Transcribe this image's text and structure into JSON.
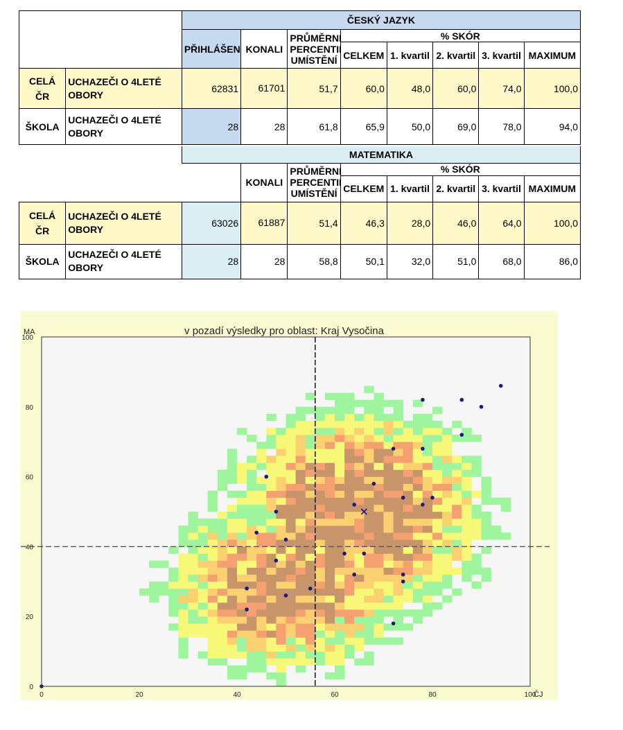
{
  "cesky": {
    "title": "ČESKÝ JAZYK",
    "headers": {
      "prihlaseni": "PŘIHLÁŠENI",
      "konali": "KONALI",
      "prumerne": "PRŮMĚRNÉ PERCENTIL. UMÍSTĚNÍ",
      "skor": "% SKÓR",
      "celkem": "CELKEM",
      "k1": "1. kvartil",
      "k2": "2. kvartil",
      "k3": "3. kvartil",
      "max": "MAXIMUM"
    },
    "rows": [
      {
        "label": "CELÁ ČR",
        "group": "UCHAZEČI O 4LETÉ OBORY",
        "prihlaseni": "62831",
        "konali": "61701",
        "prumerne": "51,7",
        "celkem": "60,0",
        "k1": "48,0",
        "k2": "60,0",
        "k3": "74,0",
        "max": "100,0"
      },
      {
        "label": "ŠKOLA",
        "group": "UCHAZEČI O 4LETÉ OBORY",
        "prihlaseni": "28",
        "konali": "28",
        "prumerne": "61,8",
        "celkem": "65,9",
        "k1": "50,0",
        "k2": "69,0",
        "k3": "78,0",
        "max": "94,0"
      }
    ]
  },
  "matematika": {
    "title": "MATEMATIKA",
    "headers": {
      "konali": "KONALI",
      "prumerne": "PRŮMĚRNÉ PERCENTIL. UMÍSTĚNÍ",
      "skor": "% SKÓR",
      "celkem": "CELKEM",
      "k1": "1. kvartil",
      "k2": "2. kvartil",
      "k3": "3. kvartil",
      "max": "MAXIMUM"
    },
    "rows": [
      {
        "label": "CELÁ ČR",
        "group": "UCHAZEČI O 4LETÉ OBORY",
        "prihlaseni": "63026",
        "konali": "61887",
        "prumerne": "51,4",
        "celkem": "46,3",
        "k1": "28,0",
        "k2": "46,0",
        "k3": "64,0",
        "max": "100,0"
      },
      {
        "label": "ŠKOLA",
        "group": "UCHAZEČI O 4LETÉ OBORY",
        "prihlaseni": "28",
        "konali": "28",
        "prumerne": "58,8",
        "celkem": "50,1",
        "k1": "32,0",
        "k2": "51,0",
        "k3": "68,0",
        "max": "86,0"
      }
    ]
  },
  "chart_data": {
    "type": "scatter",
    "title": "v pozadí výsledky pro oblast: Kraj Vysočina",
    "xlabel": "ČJ",
    "ylabel": "MA",
    "xlim": [
      0,
      100
    ],
    "ylim": [
      0,
      100
    ],
    "xticks": [
      0,
      20,
      40,
      60,
      80,
      100
    ],
    "yticks": [
      0,
      20,
      40,
      60,
      80,
      100
    ],
    "background": "heatmap of regional results (green = few, yellow, orange, brown = many)",
    "heat_colors": [
      "#9ef59e",
      "#f8f878",
      "#fad070",
      "#f5a070",
      "#c8946a"
    ],
    "vline_x": 56,
    "hline_y": 40,
    "school_mean": {
      "x": 66,
      "y": 50
    },
    "points": [
      [
        0,
        0
      ],
      [
        42,
        22
      ],
      [
        44,
        44
      ],
      [
        48,
        36
      ],
      [
        48,
        50
      ],
      [
        42,
        28
      ],
      [
        46,
        60
      ],
      [
        50,
        26
      ],
      [
        50,
        42
      ],
      [
        55,
        28
      ],
      [
        62,
        38
      ],
      [
        64,
        32
      ],
      [
        64,
        52
      ],
      [
        66,
        38
      ],
      [
        68,
        58
      ],
      [
        72,
        18
      ],
      [
        72,
        68
      ],
      [
        74,
        30
      ],
      [
        74,
        32
      ],
      [
        74,
        54
      ],
      [
        78,
        52
      ],
      [
        78,
        68
      ],
      [
        78,
        82
      ],
      [
        80,
        54
      ],
      [
        86,
        72
      ],
      [
        86,
        82
      ],
      [
        90,
        80
      ],
      [
        94,
        86
      ]
    ],
    "colors": {
      "point": "#1a1a80",
      "lines": "#444444",
      "panel": "#fbfbd2",
      "plot": "#f6f6f6"
    }
  }
}
